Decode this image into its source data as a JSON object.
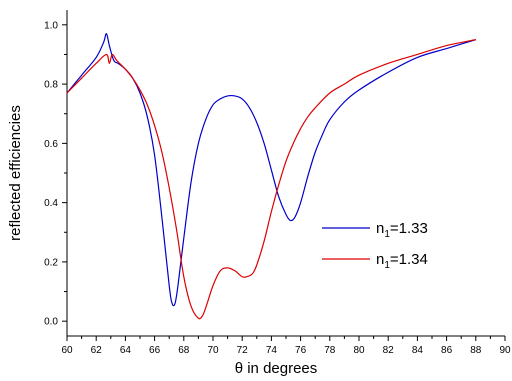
{
  "chart_data": {
    "type": "line",
    "title": "",
    "xlabel": "θ in degrees",
    "ylabel": "reflected efficiencies",
    "xlim": [
      60,
      90
    ],
    "ylim": [
      -0.05,
      1.05
    ],
    "xticks": [
      60,
      62,
      64,
      66,
      68,
      70,
      72,
      74,
      76,
      78,
      80,
      82,
      84,
      86,
      88,
      90
    ],
    "yticks": [
      0.0,
      0.2,
      0.4,
      0.6,
      0.8,
      1.0
    ],
    "xtick_labels": [
      "60",
      "62",
      "64",
      "66",
      "68",
      "70",
      "72",
      "74",
      "76",
      "78",
      "80",
      "82",
      "84",
      "86",
      "88",
      "90"
    ],
    "ytick_labels": [
      "0.0",
      "0.2",
      "0.4",
      "0.6",
      "0.8",
      "1.0"
    ],
    "grid": false,
    "legend_position": "right",
    "series": [
      {
        "name_main": "n",
        "name_sub": "1",
        "name_rest": "=1.33",
        "color": "#0000cc",
        "x": [
          60,
          61,
          62,
          62.5,
          62.7,
          62.9,
          63.2,
          63.5,
          64,
          64.5,
          65,
          65.5,
          66,
          66.5,
          67,
          67.2,
          67.4,
          67.6,
          68,
          68.5,
          69,
          69.5,
          70,
          70.5,
          71,
          71.5,
          72,
          72.5,
          73,
          73.5,
          74,
          74.5,
          75,
          75.3,
          75.6,
          76,
          76.5,
          77,
          77.5,
          78,
          79,
          80,
          82,
          84,
          86,
          88
        ],
        "y": [
          0.77,
          0.83,
          0.89,
          0.94,
          0.97,
          0.93,
          0.88,
          0.87,
          0.85,
          0.82,
          0.77,
          0.69,
          0.56,
          0.35,
          0.12,
          0.06,
          0.06,
          0.12,
          0.28,
          0.47,
          0.6,
          0.68,
          0.73,
          0.75,
          0.76,
          0.76,
          0.75,
          0.72,
          0.67,
          0.6,
          0.51,
          0.42,
          0.36,
          0.34,
          0.35,
          0.4,
          0.49,
          0.57,
          0.63,
          0.68,
          0.74,
          0.78,
          0.84,
          0.89,
          0.92,
          0.95
        ]
      },
      {
        "name_main": "n",
        "name_sub": "1",
        "name_rest": "=1.34",
        "color": "#dd0000",
        "x": [
          60,
          61,
          62,
          62.7,
          62.9,
          63.1,
          63.4,
          64,
          64.5,
          65,
          65.5,
          66,
          66.5,
          67,
          67.5,
          68,
          68.5,
          69,
          69.3,
          69.6,
          70,
          70.5,
          71,
          71.5,
          72,
          72.3,
          72.7,
          73,
          73.5,
          74,
          74.5,
          75,
          75.5,
          76,
          76.5,
          77,
          78,
          79,
          80,
          82,
          84,
          86,
          88
        ],
        "y": [
          0.77,
          0.82,
          0.87,
          0.9,
          0.87,
          0.9,
          0.88,
          0.85,
          0.82,
          0.78,
          0.73,
          0.66,
          0.57,
          0.45,
          0.31,
          0.15,
          0.05,
          0.01,
          0.02,
          0.06,
          0.12,
          0.17,
          0.18,
          0.17,
          0.15,
          0.15,
          0.16,
          0.19,
          0.27,
          0.37,
          0.46,
          0.54,
          0.6,
          0.65,
          0.69,
          0.72,
          0.77,
          0.8,
          0.83,
          0.87,
          0.9,
          0.93,
          0.95
        ]
      }
    ]
  }
}
